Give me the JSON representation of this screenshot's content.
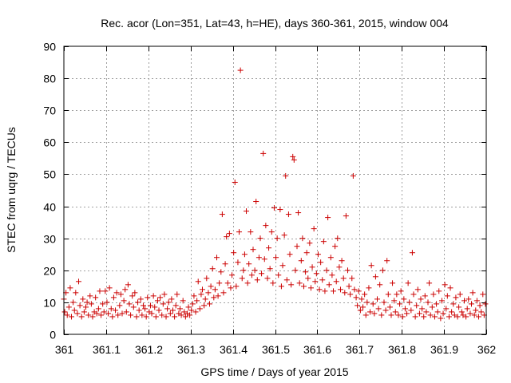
{
  "chart_data": {
    "type": "scatter",
    "title": "Rec. acor (Lon=351, Lat=43, h=HE), days 360-361, 2015, window 004",
    "xlabel": "GPS time / Days of year 2015",
    "ylabel": "STEC from uqrg / TECUs",
    "xlim": [
      361,
      362
    ],
    "ylim": [
      0,
      90
    ],
    "xticks": [
      361,
      361.1,
      361.2,
      361.3,
      361.4,
      361.5,
      361.6,
      361.7,
      361.8,
      361.9,
      362
    ],
    "xtick_labels": [
      "361",
      "361.1",
      "361.2",
      "361.3",
      "361.4",
      "361.5",
      "361.6",
      "361.7",
      "361.8",
      "361.9",
      "362"
    ],
    "yticks": [
      0,
      10,
      20,
      30,
      40,
      50,
      60,
      70,
      80,
      90
    ],
    "ytick_labels": [
      "0",
      "10",
      "20",
      "30",
      "40",
      "50",
      "60",
      "70",
      "80",
      "90"
    ],
    "grid": true,
    "marker": "+",
    "color": "#cc0000",
    "points": [
      [
        361.0,
        11.0
      ],
      [
        361.002,
        7.0
      ],
      [
        361.005,
        13.0
      ],
      [
        361.008,
        6.0
      ],
      [
        361.012,
        8.5
      ],
      [
        361.015,
        14.5
      ],
      [
        361.018,
        5.5
      ],
      [
        361.022,
        10.0
      ],
      [
        361.025,
        7.5
      ],
      [
        361.028,
        13.0
      ],
      [
        361.032,
        6.5
      ],
      [
        361.035,
        16.5
      ],
      [
        361.038,
        9.0
      ],
      [
        361.042,
        5.5
      ],
      [
        361.045,
        11.0
      ],
      [
        361.048,
        7.0
      ],
      [
        361.052,
        8.5
      ],
      [
        361.055,
        10.0
      ],
      [
        361.058,
        6.0
      ],
      [
        361.062,
        12.0
      ],
      [
        361.065,
        9.5
      ],
      [
        361.068,
        5.5
      ],
      [
        361.072,
        7.0
      ],
      [
        361.075,
        11.5
      ],
      [
        361.078,
        6.5
      ],
      [
        361.082,
        8.0
      ],
      [
        361.085,
        13.5
      ],
      [
        361.088,
        6.0
      ],
      [
        361.092,
        9.5
      ],
      [
        361.095,
        7.0
      ],
      [
        361.098,
        13.5
      ],
      [
        361.102,
        10.0
      ],
      [
        361.105,
        6.5
      ],
      [
        361.108,
        14.5
      ],
      [
        361.112,
        8.0
      ],
      [
        361.115,
        5.5
      ],
      [
        361.118,
        11.5
      ],
      [
        361.122,
        7.5
      ],
      [
        361.125,
        13.0
      ],
      [
        361.128,
        6.0
      ],
      [
        361.132,
        9.0
      ],
      [
        361.135,
        12.5
      ],
      [
        361.138,
        6.5
      ],
      [
        361.142,
        10.5
      ],
      [
        361.145,
        14.0
      ],
      [
        361.148,
        7.0
      ],
      [
        361.152,
        15.5
      ],
      [
        361.155,
        9.5
      ],
      [
        361.158,
        6.0
      ],
      [
        361.162,
        12.0
      ],
      [
        361.165,
        8.5
      ],
      [
        361.168,
        13.0
      ],
      [
        361.172,
        5.5
      ],
      [
        361.175,
        10.0
      ],
      [
        361.178,
        7.5
      ],
      [
        361.182,
        11.0
      ],
      [
        361.185,
        6.0
      ],
      [
        361.188,
        9.0
      ],
      [
        361.192,
        8.0
      ],
      [
        361.195,
        5.5
      ],
      [
        361.198,
        11.5
      ],
      [
        361.202,
        7.0
      ],
      [
        361.205,
        9.0
      ],
      [
        361.208,
        6.5
      ],
      [
        361.212,
        12.0
      ],
      [
        361.215,
        8.5
      ],
      [
        361.218,
        5.5
      ],
      [
        361.222,
        10.5
      ],
      [
        361.225,
        7.5
      ],
      [
        361.228,
        11.5
      ],
      [
        361.232,
        6.0
      ],
      [
        361.235,
        9.5
      ],
      [
        361.238,
        12.5
      ],
      [
        361.242,
        5.5
      ],
      [
        361.245,
        8.0
      ],
      [
        361.248,
        10.0
      ],
      [
        361.252,
        6.5
      ],
      [
        361.255,
        11.0
      ],
      [
        361.258,
        7.5
      ],
      [
        361.262,
        5.5
      ],
      [
        361.265,
        9.0
      ],
      [
        361.268,
        12.5
      ],
      [
        361.272,
        6.5
      ],
      [
        361.275,
        8.0
      ],
      [
        361.278,
        6.0
      ],
      [
        361.282,
        10.5
      ],
      [
        361.285,
        7.0
      ],
      [
        361.288,
        5.5
      ],
      [
        361.292,
        6.5
      ],
      [
        361.295,
        8.5
      ],
      [
        361.298,
        6.0
      ],
      [
        361.302,
        7.5
      ],
      [
        361.305,
        9.5
      ],
      [
        361.308,
        12.0
      ],
      [
        361.312,
        7.0
      ],
      [
        361.315,
        10.5
      ],
      [
        361.318,
        16.5
      ],
      [
        361.322,
        8.0
      ],
      [
        361.325,
        12.5
      ],
      [
        361.328,
        14.0
      ],
      [
        361.332,
        9.0
      ],
      [
        361.335,
        11.0
      ],
      [
        361.338,
        17.5
      ],
      [
        361.342,
        13.0
      ],
      [
        361.345,
        9.5
      ],
      [
        361.348,
        15.0
      ],
      [
        361.352,
        20.5
      ],
      [
        361.355,
        11.5
      ],
      [
        361.358,
        14.0
      ],
      [
        361.362,
        24.0
      ],
      [
        361.365,
        12.0
      ],
      [
        361.368,
        16.0
      ],
      [
        361.372,
        19.5
      ],
      [
        361.375,
        37.5
      ],
      [
        361.378,
        13.0
      ],
      [
        361.382,
        22.0
      ],
      [
        361.385,
        30.5
      ],
      [
        361.388,
        16.0
      ],
      [
        361.392,
        31.5
      ],
      [
        361.395,
        14.5
      ],
      [
        361.398,
        18.5
      ],
      [
        361.402,
        25.5
      ],
      [
        361.405,
        47.5
      ],
      [
        361.408,
        15.0
      ],
      [
        361.412,
        22.5
      ],
      [
        361.415,
        32.0
      ],
      [
        361.418,
        82.5
      ],
      [
        361.422,
        17.5
      ],
      [
        361.425,
        20.0
      ],
      [
        361.428,
        25.0
      ],
      [
        361.432,
        38.5
      ],
      [
        361.435,
        16.0
      ],
      [
        361.438,
        22.0
      ],
      [
        361.442,
        32.0
      ],
      [
        361.445,
        18.5
      ],
      [
        361.448,
        26.5
      ],
      [
        361.452,
        20.0
      ],
      [
        361.455,
        41.5
      ],
      [
        361.458,
        17.0
      ],
      [
        361.462,
        24.0
      ],
      [
        361.465,
        30.0
      ],
      [
        361.468,
        19.0
      ],
      [
        361.472,
        56.5
      ],
      [
        361.475,
        23.5
      ],
      [
        361.478,
        34.0
      ],
      [
        361.482,
        17.5
      ],
      [
        361.485,
        27.0
      ],
      [
        361.488,
        20.5
      ],
      [
        361.492,
        32.0
      ],
      [
        361.495,
        16.0
      ],
      [
        361.498,
        39.5
      ],
      [
        361.502,
        24.0
      ],
      [
        361.505,
        30.0
      ],
      [
        361.508,
        18.5
      ],
      [
        361.512,
        39.0
      ],
      [
        361.515,
        15.0
      ],
      [
        361.518,
        21.5
      ],
      [
        361.522,
        31.0
      ],
      [
        361.525,
        49.5
      ],
      [
        361.528,
        17.0
      ],
      [
        361.532,
        37.5
      ],
      [
        361.535,
        25.0
      ],
      [
        361.538,
        15.5
      ],
      [
        361.542,
        55.5
      ],
      [
        361.545,
        54.5
      ],
      [
        361.548,
        20.0
      ],
      [
        361.552,
        27.5
      ],
      [
        361.555,
        38.0
      ],
      [
        361.558,
        16.0
      ],
      [
        361.562,
        23.0
      ],
      [
        361.565,
        30.0
      ],
      [
        361.568,
        15.0
      ],
      [
        361.572,
        19.5
      ],
      [
        361.575,
        25.5
      ],
      [
        361.578,
        17.5
      ],
      [
        361.582,
        28.5
      ],
      [
        361.585,
        14.5
      ],
      [
        361.588,
        21.0
      ],
      [
        361.592,
        33.0
      ],
      [
        361.595,
        16.5
      ],
      [
        361.598,
        19.0
      ],
      [
        361.602,
        25.0
      ],
      [
        361.605,
        14.0
      ],
      [
        361.608,
        22.5
      ],
      [
        361.612,
        17.0
      ],
      [
        361.615,
        29.0
      ],
      [
        361.618,
        13.5
      ],
      [
        361.622,
        20.0
      ],
      [
        361.625,
        36.5
      ],
      [
        361.628,
        15.5
      ],
      [
        361.632,
        24.0
      ],
      [
        361.635,
        18.5
      ],
      [
        361.638,
        13.5
      ],
      [
        361.642,
        27.5
      ],
      [
        361.645,
        16.5
      ],
      [
        361.648,
        30.0
      ],
      [
        361.652,
        21.0
      ],
      [
        361.655,
        14.0
      ],
      [
        361.658,
        23.0
      ],
      [
        361.662,
        17.5
      ],
      [
        361.665,
        13.0
      ],
      [
        361.668,
        37.0
      ],
      [
        361.672,
        20.0
      ],
      [
        361.675,
        15.0
      ],
      [
        361.678,
        12.5
      ],
      [
        361.682,
        17.5
      ],
      [
        361.685,
        49.5
      ],
      [
        361.688,
        14.0
      ],
      [
        361.692,
        11.5
      ],
      [
        361.695,
        9.0
      ],
      [
        361.698,
        13.5
      ],
      [
        361.702,
        7.5
      ],
      [
        361.705,
        11.0
      ],
      [
        361.708,
        8.5
      ],
      [
        361.712,
        12.5
      ],
      [
        361.715,
        6.0
      ],
      [
        361.718,
        10.0
      ],
      [
        361.722,
        14.5
      ],
      [
        361.725,
        7.0
      ],
      [
        361.728,
        21.5
      ],
      [
        361.732,
        9.5
      ],
      [
        361.735,
        6.5
      ],
      [
        361.738,
        18.0
      ],
      [
        361.742,
        11.0
      ],
      [
        361.745,
        8.0
      ],
      [
        361.748,
        15.5
      ],
      [
        361.752,
        6.0
      ],
      [
        361.755,
        20.0
      ],
      [
        361.758,
        10.0
      ],
      [
        361.762,
        7.5
      ],
      [
        361.765,
        23.0
      ],
      [
        361.768,
        12.5
      ],
      [
        361.772,
        8.5
      ],
      [
        361.775,
        6.0
      ],
      [
        361.778,
        16.0
      ],
      [
        361.782,
        10.5
      ],
      [
        361.785,
        7.0
      ],
      [
        361.788,
        12.5
      ],
      [
        361.792,
        6.0
      ],
      [
        361.795,
        9.5
      ],
      [
        361.798,
        13.5
      ],
      [
        361.802,
        5.5
      ],
      [
        361.805,
        11.0
      ],
      [
        361.808,
        8.0
      ],
      [
        361.812,
        6.5
      ],
      [
        361.815,
        16.0
      ],
      [
        361.818,
        10.0
      ],
      [
        361.822,
        7.5
      ],
      [
        361.825,
        25.5
      ],
      [
        361.828,
        12.5
      ],
      [
        361.832,
        5.5
      ],
      [
        361.835,
        9.0
      ],
      [
        361.838,
        14.0
      ],
      [
        361.842,
        6.5
      ],
      [
        361.845,
        11.0
      ],
      [
        361.848,
        8.0
      ],
      [
        361.852,
        5.5
      ],
      [
        361.855,
        12.0
      ],
      [
        361.858,
        7.0
      ],
      [
        361.862,
        10.0
      ],
      [
        361.865,
        16.0
      ],
      [
        361.868,
        6.0
      ],
      [
        361.872,
        8.5
      ],
      [
        361.875,
        12.5
      ],
      [
        361.878,
        5.5
      ],
      [
        361.882,
        9.5
      ],
      [
        361.885,
        7.0
      ],
      [
        361.888,
        13.5
      ],
      [
        361.892,
        5.0
      ],
      [
        361.895,
        10.5
      ],
      [
        361.898,
        6.5
      ],
      [
        361.902,
        15.5
      ],
      [
        361.905,
        8.0
      ],
      [
        361.908,
        12.0
      ],
      [
        361.912,
        5.5
      ],
      [
        361.915,
        14.5
      ],
      [
        361.918,
        7.0
      ],
      [
        361.922,
        9.5
      ],
      [
        361.925,
        6.0
      ],
      [
        361.928,
        11.5
      ],
      [
        361.932,
        5.5
      ],
      [
        361.935,
        8.5
      ],
      [
        361.938,
        12.5
      ],
      [
        361.942,
        7.0
      ],
      [
        361.945,
        6.0
      ],
      [
        361.948,
        10.5
      ],
      [
        361.952,
        5.5
      ],
      [
        361.955,
        8.0
      ],
      [
        361.958,
        11.0
      ],
      [
        361.962,
        6.5
      ],
      [
        361.965,
        9.5
      ],
      [
        361.968,
        13.0
      ],
      [
        361.972,
        6.0
      ],
      [
        361.975,
        7.5
      ],
      [
        361.978,
        10.5
      ],
      [
        361.982,
        5.5
      ],
      [
        361.985,
        9.0
      ],
      [
        361.988,
        7.0
      ],
      [
        361.992,
        12.5
      ],
      [
        361.995,
        6.0
      ],
      [
        361.998,
        9.5
      ]
    ]
  }
}
